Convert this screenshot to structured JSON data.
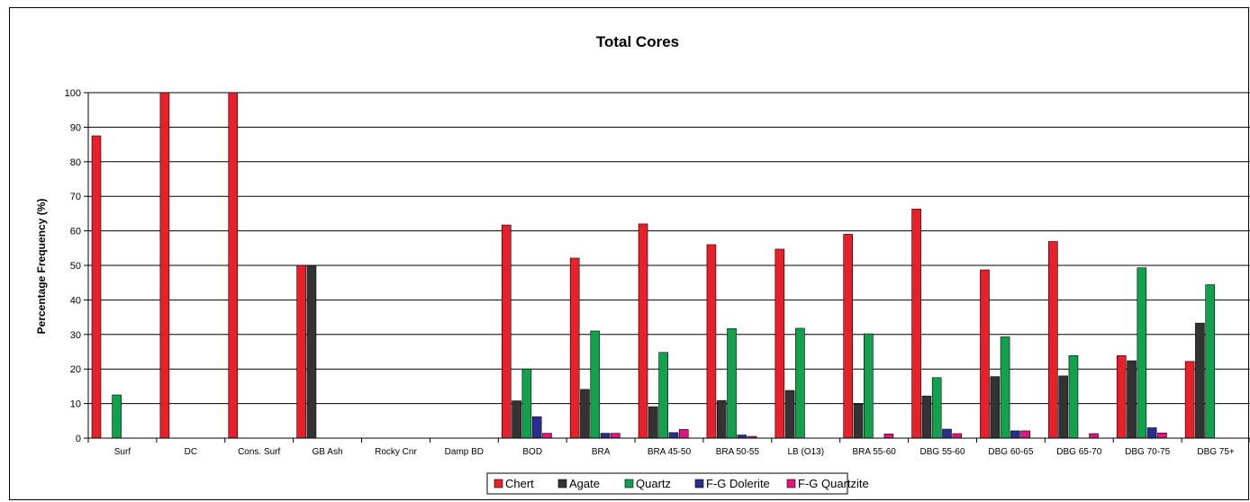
{
  "chart_data": {
    "type": "bar",
    "title": "Total Cores",
    "xlabel": "",
    "ylabel": "Percentage Frequency (%)",
    "ylim": [
      0,
      100
    ],
    "yticks": [
      0,
      10,
      20,
      30,
      40,
      50,
      60,
      70,
      80,
      90,
      100
    ],
    "grid": true,
    "legend_position": "bottom",
    "categories": [
      "Surf",
      "DC",
      "Cons. Surf",
      "GB Ash",
      "Rocky Cnr",
      "Damp BD",
      "BOD",
      "BRA",
      "BRA 45-50",
      "BRA 50-55",
      "LB (O13)",
      "BRA 55-60",
      "DBG 55-60",
      "DBG 60-65",
      "DBG 65-70",
      "DBG 70-75",
      "DBG 75+"
    ],
    "series": [
      {
        "name": "Chert",
        "color": "#e8202a",
        "values": [
          87.5,
          100,
          100,
          50,
          0,
          0,
          61.7,
          52.1,
          62.0,
          56.0,
          54.7,
          59.0,
          66.3,
          48.7,
          56.9,
          23.9,
          22.2
        ]
      },
      {
        "name": "Agate",
        "color": "#333333",
        "values": [
          0,
          0,
          0,
          50,
          0,
          0,
          10.8,
          14.1,
          9.1,
          10.9,
          13.8,
          9.8,
          12.2,
          17.8,
          18.0,
          22.4,
          33.3
        ]
      },
      {
        "name": "Quartz",
        "color": "#12a14c",
        "values": [
          12.5,
          0,
          0,
          0,
          0,
          0,
          20.0,
          31.0,
          24.8,
          31.7,
          31.8,
          30.2,
          17.5,
          29.3,
          23.9,
          49.3,
          44.4
        ]
      },
      {
        "name": "F-G Dolerite",
        "color": "#2a2e8e",
        "values": [
          0,
          0,
          0,
          0,
          0,
          0,
          6.2,
          1.4,
          1.6,
          0.9,
          0,
          0,
          2.6,
          2.1,
          0,
          3.0,
          0
        ]
      },
      {
        "name": "F-G Quartzite",
        "color": "#e0157f",
        "values": [
          0,
          0,
          0,
          0,
          0,
          0,
          1.4,
          1.4,
          2.5,
          0.5,
          0,
          1.2,
          1.3,
          2.1,
          1.3,
          1.5,
          0
        ]
      }
    ]
  }
}
